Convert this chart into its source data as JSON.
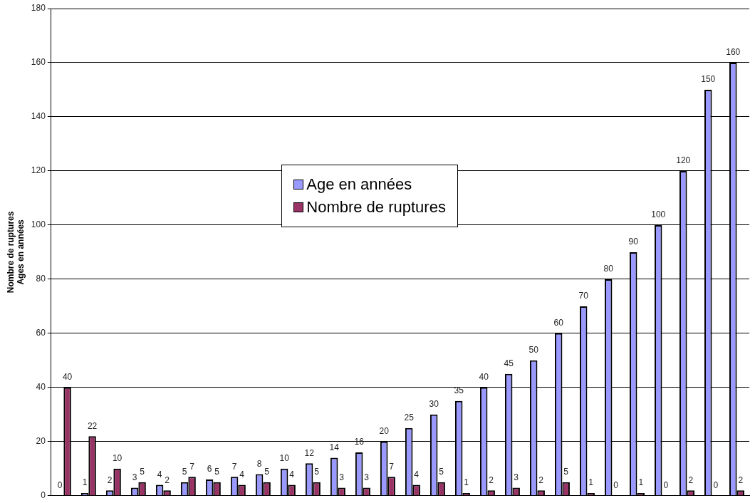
{
  "chart_data": {
    "type": "bar",
    "ylabel": "Nombre de ruptures\nAges en années",
    "categories": [
      null,
      null,
      null,
      null,
      null,
      null,
      null,
      null,
      null,
      null,
      null,
      null,
      null,
      null,
      null,
      null,
      null,
      null,
      null,
      null,
      null,
      null,
      null,
      null,
      null,
      null,
      null,
      null
    ],
    "series": [
      {
        "name": "Age en années",
        "color": "#9999ff",
        "values": [
          0,
          1,
          2,
          3,
          4,
          5,
          6,
          7,
          8,
          10,
          12,
          14,
          16,
          20,
          25,
          30,
          35,
          40,
          45,
          50,
          60,
          70,
          80,
          90,
          100,
          120,
          150,
          160
        ]
      },
      {
        "name": "Nombre de ruptures",
        "color": "#993366",
        "values": [
          40,
          22,
          10,
          5,
          2,
          7,
          5,
          4,
          5,
          4,
          5,
          3,
          3,
          7,
          4,
          5,
          1,
          2,
          3,
          2,
          5,
          1,
          0,
          1,
          0,
          2,
          0,
          2
        ]
      }
    ],
    "ylim": [
      0,
      180
    ],
    "yticks": [
      0,
      20,
      40,
      60,
      80,
      100,
      120,
      140,
      160,
      180
    ],
    "grid": "y",
    "legend": "center left",
    "data_labels": true,
    "tick_labels": "y"
  }
}
